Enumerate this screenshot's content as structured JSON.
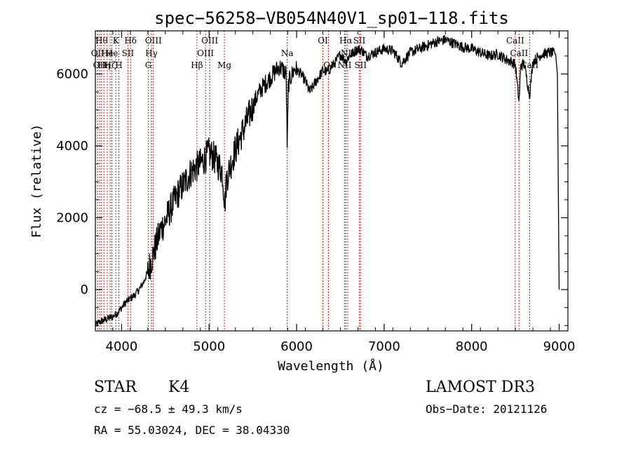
{
  "chart_data": {
    "type": "line",
    "title": "spec−56258−VB054N40V1_sp01−118.fits",
    "xlabel": "Wavelength (Å)",
    "ylabel": "Flux (relative)",
    "xlim": [
      3700,
      9100
    ],
    "ylim": [
      -1150,
      7200
    ],
    "xticks": [
      4000,
      5000,
      6000,
      7000,
      8000,
      9000
    ],
    "xtick_labels": [
      "4000",
      "5000",
      "6000",
      "7000",
      "8000",
      "9000"
    ],
    "yticks": [
      0,
      2000,
      4000,
      6000
    ],
    "ytick_labels": [
      "0",
      "2000",
      "4000",
      "6000"
    ],
    "series": [
      {
        "name": "spectrum",
        "x": [
          3700,
          3750,
          3800,
          3850,
          3900,
          3950,
          4000,
          4050,
          4100,
          4150,
          4200,
          4250,
          4300,
          4350,
          4400,
          4450,
          4500,
          4550,
          4600,
          4650,
          4700,
          4750,
          4800,
          4850,
          4900,
          4950,
          5000,
          5050,
          5100,
          5150,
          5180,
          5200,
          5250,
          5300,
          5350,
          5400,
          5450,
          5500,
          5550,
          5600,
          5650,
          5700,
          5750,
          5800,
          5850,
          5880,
          5893,
          5905,
          5930,
          5980,
          6050,
          6100,
          6150,
          6200,
          6250,
          6300,
          6350,
          6400,
          6450,
          6500,
          6563,
          6600,
          6650,
          6700,
          6750,
          6800,
          6900,
          7000,
          7100,
          7200,
          7300,
          7400,
          7500,
          7600,
          7700,
          7800,
          7900,
          8000,
          8100,
          8200,
          8300,
          8400,
          8450,
          8500,
          8542,
          8560,
          8600,
          8662,
          8700,
          8800,
          8900,
          8960,
          8980,
          9000
        ],
        "y": [
          -1000,
          -900,
          -850,
          -800,
          -750,
          -650,
          -500,
          -350,
          -250,
          -150,
          0,
          200,
          500,
          900,
          1300,
          1700,
          1900,
          2200,
          2450,
          2700,
          2900,
          3100,
          3300,
          3400,
          3500,
          3650,
          3800,
          3700,
          3500,
          3300,
          2400,
          3100,
          3500,
          3900,
          4200,
          4500,
          4800,
          5100,
          5400,
          5600,
          5750,
          5900,
          6050,
          6200,
          6100,
          6000,
          3900,
          5700,
          5900,
          6150,
          6000,
          5800,
          5500,
          5700,
          5900,
          6100,
          6050,
          6200,
          6350,
          6550,
          6350,
          6500,
          6600,
          6700,
          6650,
          6500,
          6600,
          6700,
          6650,
          6300,
          6600,
          6700,
          6800,
          6900,
          6950,
          6850,
          6750,
          6700,
          6600,
          6500,
          6550,
          6400,
          6350,
          6250,
          5200,
          6200,
          6300,
          5400,
          6350,
          6550,
          6600,
          6550,
          6000,
          0
        ]
      }
    ],
    "line_markers": [
      {
        "x": 3727,
        "label": "OII",
        "row": 2
      },
      {
        "x": 3750,
        "label": "OII",
        "row": 3
      },
      {
        "x": 3771,
        "label": "Hθ",
        "row": 1
      },
      {
        "x": 3798,
        "label": "Hη",
        "row": 3
      },
      {
        "x": 3835,
        "label": "He",
        "row": 2
      },
      {
        "x": 3869,
        "label": "Hζ",
        "row": 3
      },
      {
        "x": 3889,
        "label": "He",
        "row": 2
      },
      {
        "x": 3934,
        "label": "K",
        "row": 1
      },
      {
        "x": 3969,
        "label": "H",
        "row": 3
      },
      {
        "x": 4072,
        "label": "SII",
        "row": 2
      },
      {
        "x": 4102,
        "label": "Hδ",
        "row": 1
      },
      {
        "x": 4305,
        "label": "G",
        "row": 3
      },
      {
        "x": 4341,
        "label": "Hγ",
        "row": 2
      },
      {
        "x": 4363,
        "label": "OIII",
        "row": 1
      },
      {
        "x": 4861,
        "label": "Hβ",
        "row": 3
      },
      {
        "x": 4959,
        "label": "OIII",
        "row": 2
      },
      {
        "x": 5007,
        "label": "OIII",
        "row": 1
      },
      {
        "x": 5175,
        "label": "Mg",
        "row": 3
      },
      {
        "x": 5893,
        "label": "Na",
        "row": 2
      },
      {
        "x": 6300,
        "label": "OI",
        "row": 1
      },
      {
        "x": 6364,
        "label": "OI",
        "row": 3
      },
      {
        "x": 6548,
        "label": "NII",
        "row": 3
      },
      {
        "x": 6563,
        "label": "Hα",
        "row": 1
      },
      {
        "x": 6583,
        "label": "NII",
        "row": 2
      },
      {
        "x": 6717,
        "label": "SII",
        "row": 1
      },
      {
        "x": 6731,
        "label": "SII",
        "row": 3
      },
      {
        "x": 8498,
        "label": "CaII",
        "row": 1
      },
      {
        "x": 8542,
        "label": "CaII",
        "row": 2
      },
      {
        "x": 8662,
        "label": "CaII",
        "row": 3
      }
    ]
  },
  "info": {
    "object_class": "STAR",
    "subclass": "K4",
    "survey": "LAMOST DR3",
    "cz": "cz = −68.5 ± 49.3 km/s",
    "obs_date": "Obs−Date: 20121126",
    "coords": "RA =  55.03024, DEC =  38.04330"
  },
  "colors": {
    "spectrum": "#000000",
    "line_marker": "#b22222",
    "axis": "#000000"
  }
}
